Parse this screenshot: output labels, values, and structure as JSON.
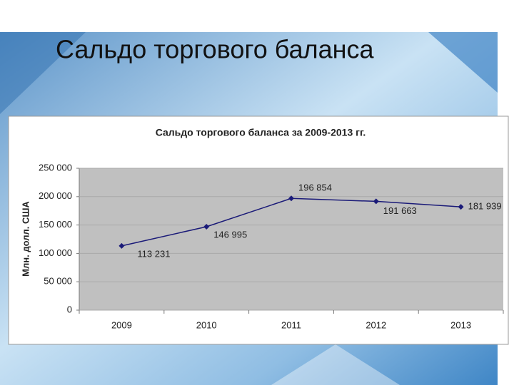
{
  "slide_title": "Сальдо торгового баланса",
  "chart_data": {
    "type": "line",
    "title": "Сальдо торгового баланса за 2009-2013 гг.",
    "y_label": "Млн. долл. США",
    "categories": [
      "2009",
      "2010",
      "2011",
      "2012",
      "2013"
    ],
    "series": [
      {
        "name": "Сальдо",
        "color": "#1a1a78",
        "values": [
          113231,
          146995,
          196854,
          191663,
          181939
        ],
        "value_labels": [
          "113 231",
          "146 995",
          "196 854",
          "191 663",
          "181 939"
        ]
      }
    ],
    "ylim": [
      0,
      250000
    ],
    "yticks": [
      0,
      {
        "value": 50000,
        "label": "50 000"
      },
      {
        "value": 100000,
        "label": "100 000"
      },
      {
        "value": 150000,
        "label": "150 000"
      },
      {
        "value": 200000,
        "label": "200 000"
      },
      {
        "value": 250000,
        "label": "250 000"
      }
    ],
    "grid": true
  }
}
